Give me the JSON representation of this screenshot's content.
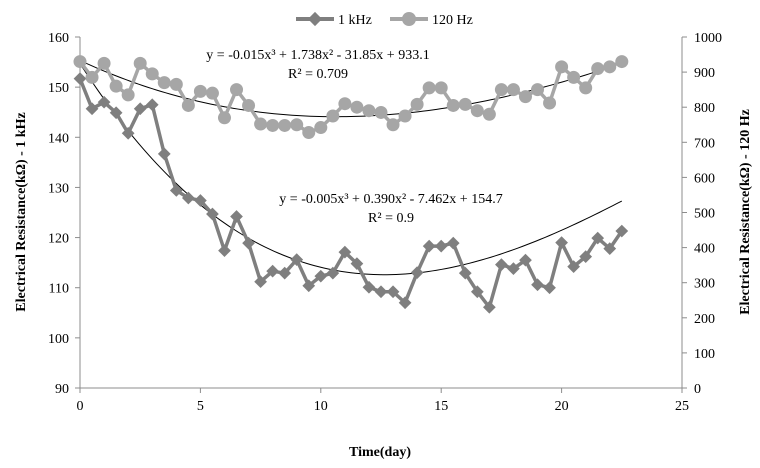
{
  "chart_data": {
    "type": "line",
    "xlabel": "Time(day)",
    "ylabel_left": "Electrical Resistance(kΩ) - 1 kHz",
    "ylabel_right": "Electrical Resistance(kΩ) - 120 Hz",
    "xlim": [
      0,
      25
    ],
    "xticks": [
      0,
      5,
      10,
      15,
      20,
      25
    ],
    "ylim_left": [
      90,
      160
    ],
    "yticks_left": [
      90,
      100,
      110,
      120,
      130,
      140,
      150,
      160
    ],
    "ylim_right": [
      0,
      1000
    ],
    "yticks_right": [
      0,
      100,
      200,
      300,
      400,
      500,
      600,
      700,
      800,
      900,
      1000
    ],
    "legend_position": "top-center",
    "grid": false,
    "series": [
      {
        "name": "1 kHz",
        "axis": "left",
        "marker": "diamond",
        "color": "#7f7f7f",
        "x": [
          0,
          0.5,
          1,
          1.5,
          2,
          2.5,
          3,
          3.5,
          4,
          4.5,
          5,
          5.5,
          6,
          6.5,
          7,
          7.5,
          8,
          8.5,
          9,
          9.5,
          10,
          10.5,
          11,
          11.5,
          12,
          12.5,
          13,
          13.5,
          14,
          14.5,
          15,
          15.5,
          16,
          16.5,
          17,
          17.5,
          18,
          18.5,
          19,
          19.5,
          20,
          20.5,
          21,
          21.5,
          22,
          22.5
        ],
        "y": [
          151.7,
          145.7,
          147.0,
          144.9,
          140.8,
          145.7,
          146.5,
          136.7,
          129.4,
          127.9,
          127.4,
          124.7,
          117.4,
          124.2,
          118.9,
          111.2,
          113.3,
          112.9,
          115.6,
          110.4,
          112.3,
          112.9,
          117.1,
          114.8,
          110.1,
          109.2,
          109.2,
          107.0,
          113.0,
          118.3,
          118.3,
          118.9,
          112.9,
          109.2,
          106.1,
          114.6,
          113.8,
          115.5,
          110.6,
          110.0,
          119.0,
          114.2,
          116.2,
          119.9,
          117.8,
          121.3
        ]
      },
      {
        "name": "120 Hz",
        "axis": "right",
        "marker": "circle",
        "color": "#a6a6a6",
        "x": [
          0,
          0.5,
          1,
          1.5,
          2,
          2.5,
          3,
          3.5,
          4,
          4.5,
          5,
          5.5,
          6,
          6.5,
          7,
          7.5,
          8,
          8.5,
          9,
          9.5,
          10,
          10.5,
          11,
          11.5,
          12,
          12.5,
          13,
          13.5,
          14,
          14.5,
          15,
          15.5,
          16,
          16.5,
          17,
          17.5,
          18,
          18.5,
          19,
          19.5,
          20,
          20.5,
          21,
          21.5,
          22,
          22.5
        ],
        "y": [
          930,
          885,
          925,
          860,
          835,
          925,
          895,
          870,
          865,
          805,
          845,
          840,
          770,
          850,
          805,
          752,
          748,
          748,
          750,
          728,
          742,
          775,
          810,
          800,
          790,
          785,
          750,
          775,
          808,
          855,
          855,
          805,
          808,
          790,
          780,
          850,
          850,
          830,
          850,
          812,
          915,
          885,
          855,
          910,
          915,
          930
        ]
      }
    ],
    "trendlines": [
      {
        "series": "1 kHz",
        "axis": "left",
        "coefficients": [
          -0.005,
          0.39,
          -7.462,
          154.7
        ],
        "equation_label": "y = -0.005x³ + 0.390x² - 7.462x + 154.7",
        "r2_label": "R² = 0.9"
      },
      {
        "series": "120 Hz",
        "axis": "right",
        "coefficients": [
          -0.015,
          1.738,
          -31.85,
          933.1
        ],
        "equation_label": "y = -0.015x³ + 1.738x² - 31.85x + 933.1",
        "r2_label": "R² = 0.709"
      }
    ]
  }
}
